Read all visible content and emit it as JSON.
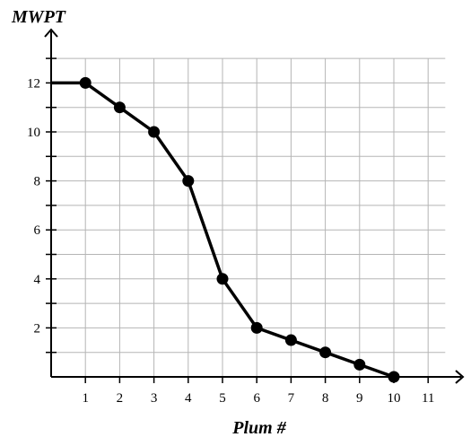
{
  "chart_data": {
    "type": "line",
    "title": "",
    "ylabel": "MWPT",
    "xlabel": "Plum #",
    "x_ticks": [
      "1",
      "2",
      "3",
      "4",
      "5",
      "6",
      "7",
      "8",
      "9",
      "10",
      "11"
    ],
    "y_ticks": [
      "2",
      "4",
      "6",
      "8",
      "10",
      "12"
    ],
    "xlim": [
      0,
      11.5
    ],
    "ylim": [
      0,
      13
    ],
    "grid": true,
    "series": [
      {
        "color": "#000000",
        "x": [
          0,
          1,
          2,
          3,
          4,
          5,
          6,
          7,
          8,
          9,
          10
        ],
        "y": [
          12,
          12,
          11,
          10,
          8,
          4,
          2,
          1.5,
          1,
          0.5,
          0
        ],
        "markers": [
          false,
          true,
          true,
          true,
          true,
          true,
          true,
          true,
          true,
          true,
          true
        ]
      }
    ]
  }
}
